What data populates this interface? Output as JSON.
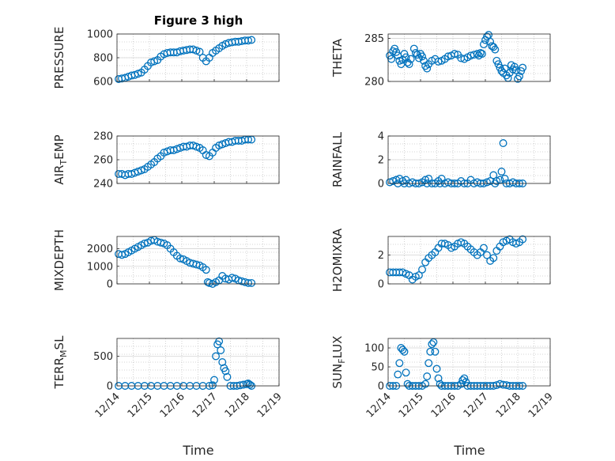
{
  "figure_title": "Figure 3 high",
  "colors": {
    "marker": "#0072BD",
    "axes": "#262626",
    "grid": "#c8c8c8"
  },
  "x_axis": {
    "label": "Time",
    "ticks": [
      "12/14",
      "12/15",
      "12/16",
      "12/17",
      "12/18",
      "12/19"
    ]
  },
  "chart_data": [
    {
      "type": "scatter",
      "title": "Figure 3 high",
      "ylabel": "PRESSURE",
      "ylim": [
        600,
        1000
      ],
      "yticks": [
        "600",
        "800",
        "1000"
      ],
      "ytick_values": [
        600,
        800,
        1000
      ],
      "xlim": [
        0,
        5
      ],
      "grid": "on",
      "x": [
        0.05,
        0.15,
        0.25,
        0.35,
        0.45,
        0.55,
        0.65,
        0.75,
        0.85,
        0.95,
        1.05,
        1.15,
        1.25,
        1.35,
        1.45,
        1.55,
        1.65,
        1.75,
        1.85,
        1.95,
        2.05,
        2.15,
        2.25,
        2.35,
        2.45,
        2.55,
        2.65,
        2.75,
        2.85,
        2.95,
        3.05,
        3.15,
        3.25,
        3.35,
        3.45,
        3.55,
        3.65,
        3.75,
        3.85,
        3.95,
        4.05,
        4.15
      ],
      "y": [
        620,
        625,
        630,
        640,
        650,
        655,
        665,
        675,
        700,
        730,
        760,
        770,
        780,
        810,
        830,
        840,
        845,
        845,
        845,
        855,
        860,
        865,
        870,
        870,
        860,
        850,
        800,
        770,
        800,
        840,
        860,
        880,
        900,
        915,
        925,
        930,
        935,
        935,
        940,
        945,
        945,
        950
      ]
    },
    {
      "type": "scatter",
      "ylabel": "THETA",
      "ylim": [
        280,
        285.5
      ],
      "yticks": [
        "280",
        "285"
      ],
      "ytick_values": [
        280,
        285
      ],
      "xlim": [
        0,
        5
      ],
      "grid": "on",
      "x": [
        0.05,
        0.1,
        0.15,
        0.2,
        0.25,
        0.3,
        0.35,
        0.4,
        0.45,
        0.5,
        0.55,
        0.6,
        0.65,
        0.7,
        0.8,
        0.85,
        0.9,
        0.95,
        1.0,
        1.05,
        1.1,
        1.15,
        1.2,
        1.25,
        1.35,
        1.45,
        1.55,
        1.65,
        1.75,
        1.85,
        1.95,
        2.05,
        2.15,
        2.25,
        2.35,
        2.45,
        2.55,
        2.65,
        2.75,
        2.8,
        2.85,
        2.9,
        2.95,
        3.0,
        3.05,
        3.1,
        3.15,
        3.2,
        3.25,
        3.3,
        3.35,
        3.4,
        3.45,
        3.5,
        3.55,
        3.6,
        3.65,
        3.7,
        3.75,
        3.8,
        3.85,
        3.9,
        3.95,
        4.0,
        4.05,
        4.1,
        4.15
      ],
      "y": [
        283.0,
        282.6,
        283.5,
        283.8,
        283.4,
        283.0,
        282.4,
        282.0,
        282.5,
        283.2,
        282.8,
        282.2,
        282.0,
        282.6,
        283.8,
        283.3,
        283.1,
        282.7,
        283.2,
        282.9,
        282.4,
        281.8,
        281.5,
        282.0,
        282.4,
        282.6,
        282.3,
        282.4,
        282.6,
        282.9,
        283.0,
        283.2,
        283.1,
        282.7,
        282.6,
        282.8,
        283.0,
        283.1,
        283.2,
        283.0,
        283.3,
        283.2,
        284.3,
        284.8,
        285.2,
        285.4,
        284.6,
        284.1,
        284.0,
        283.7,
        282.4,
        282.0,
        281.6,
        281.2,
        281.0,
        281.5,
        280.7,
        280.4,
        281.0,
        281.9,
        281.4,
        281.7,
        281.3,
        280.3,
        280.6,
        281.2,
        281.6
      ]
    },
    {
      "type": "scatter",
      "ylabel": "AIR_TEMP",
      "ylim": [
        240,
        280
      ],
      "yticks": [
        "240",
        "260",
        "280"
      ],
      "ytick_values": [
        240,
        260,
        280
      ],
      "xlim": [
        0,
        5
      ],
      "grid": "on",
      "x": [
        0.05,
        0.15,
        0.25,
        0.35,
        0.45,
        0.55,
        0.65,
        0.75,
        0.85,
        0.95,
        1.05,
        1.15,
        1.25,
        1.35,
        1.45,
        1.55,
        1.65,
        1.75,
        1.85,
        1.95,
        2.05,
        2.15,
        2.25,
        2.35,
        2.45,
        2.55,
        2.65,
        2.75,
        2.85,
        2.95,
        3.05,
        3.15,
        3.25,
        3.35,
        3.45,
        3.55,
        3.65,
        3.75,
        3.85,
        3.95,
        4.05,
        4.15
      ],
      "y": [
        248,
        248,
        247,
        248,
        248,
        249,
        250,
        251,
        252,
        254,
        256,
        258,
        261,
        263,
        266,
        267,
        268,
        268,
        269,
        270,
        271,
        271,
        272,
        272,
        271,
        270,
        268,
        264,
        263,
        266,
        270,
        272,
        273,
        274,
        275,
        275,
        276,
        276,
        276,
        277,
        277,
        277
      ]
    },
    {
      "type": "scatter",
      "ylabel": "RAINFALL",
      "ylim": [
        0,
        4
      ],
      "yticks": [
        "0",
        "2",
        "4"
      ],
      "ytick_values": [
        0,
        2,
        4
      ],
      "xlim": [
        0,
        5
      ],
      "grid": "on",
      "x": [
        0.05,
        0.15,
        0.25,
        0.3,
        0.35,
        0.45,
        0.5,
        0.55,
        0.65,
        0.75,
        0.85,
        0.95,
        1.05,
        1.15,
        1.2,
        1.25,
        1.35,
        1.45,
        1.55,
        1.6,
        1.65,
        1.75,
        1.85,
        1.95,
        2.05,
        2.15,
        2.25,
        2.35,
        2.45,
        2.55,
        2.65,
        2.75,
        2.85,
        2.95,
        3.05,
        3.15,
        3.25,
        3.3,
        3.35,
        3.45,
        3.5,
        3.55,
        3.6,
        3.65,
        3.75,
        3.85,
        3.95,
        4.05,
        4.15
      ],
      "y": [
        0.1,
        0.2,
        0.3,
        0.0,
        0.4,
        0.2,
        0.0,
        0.3,
        0.0,
        0.1,
        0.0,
        0.0,
        0.1,
        0.3,
        0.0,
        0.4,
        0.0,
        0.0,
        0.2,
        0.0,
        0.4,
        0.0,
        0.1,
        0.0,
        0.0,
        0.0,
        0.2,
        0.0,
        0.0,
        0.3,
        0.0,
        0.1,
        0.0,
        0.0,
        0.1,
        0.2,
        0.7,
        0.0,
        0.2,
        0.3,
        1.0,
        3.4,
        0.4,
        0.0,
        0.0,
        0.1,
        0.0,
        0.0,
        0.0
      ]
    },
    {
      "type": "scatter",
      "ylabel": "MIXDEPTH",
      "ylim": [
        0,
        2700
      ],
      "yticks": [
        "0",
        "1000",
        "2000"
      ],
      "ytick_values": [
        0,
        1000,
        2000
      ],
      "xlim": [
        0,
        5
      ],
      "grid": "on",
      "x": [
        0.05,
        0.15,
        0.25,
        0.35,
        0.45,
        0.55,
        0.65,
        0.75,
        0.85,
        0.95,
        1.05,
        1.15,
        1.25,
        1.35,
        1.45,
        1.55,
        1.65,
        1.75,
        1.85,
        1.95,
        2.05,
        2.15,
        2.25,
        2.35,
        2.45,
        2.55,
        2.65,
        2.75,
        2.8,
        2.85,
        2.95,
        3.05,
        3.15,
        3.25,
        3.35,
        3.45,
        3.55,
        3.65,
        3.75,
        3.85,
        3.95,
        4.05,
        4.15
      ],
      "y": [
        1700,
        1650,
        1700,
        1800,
        1900,
        2000,
        2100,
        2200,
        2300,
        2350,
        2450,
        2500,
        2400,
        2350,
        2300,
        2200,
        2000,
        1800,
        1600,
        1450,
        1400,
        1300,
        1200,
        1150,
        1100,
        1050,
        950,
        800,
        100,
        50,
        0,
        100,
        200,
        450,
        300,
        250,
        350,
        300,
        200,
        150,
        100,
        50,
        50
      ]
    },
    {
      "type": "scatter",
      "ylabel": "H2OMIXRA",
      "ylim": [
        0,
        3.3
      ],
      "yticks": [
        "0",
        "2"
      ],
      "ytick_values": [
        0,
        2
      ],
      "xlim": [
        0,
        5
      ],
      "grid": "on",
      "x": [
        0.05,
        0.15,
        0.25,
        0.35,
        0.45,
        0.55,
        0.65,
        0.75,
        0.85,
        0.95,
        1.05,
        1.15,
        1.25,
        1.35,
        1.45,
        1.55,
        1.65,
        1.75,
        1.85,
        1.95,
        2.05,
        2.15,
        2.25,
        2.35,
        2.45,
        2.55,
        2.65,
        2.75,
        2.85,
        2.95,
        3.05,
        3.15,
        3.25,
        3.35,
        3.45,
        3.55,
        3.65,
        3.75,
        3.85,
        3.95,
        4.05,
        4.15
      ],
      "y": [
        0.8,
        0.8,
        0.8,
        0.8,
        0.8,
        0.7,
        0.6,
        0.3,
        0.5,
        0.6,
        1.0,
        1.5,
        1.8,
        2.0,
        2.2,
        2.5,
        2.8,
        2.8,
        2.7,
        2.5,
        2.6,
        2.8,
        2.9,
        2.8,
        2.6,
        2.4,
        2.2,
        2.0,
        2.2,
        2.5,
        2.0,
        1.6,
        1.8,
        2.3,
        2.6,
        2.9,
        3.0,
        3.1,
        2.9,
        2.8,
        2.9,
        3.1
      ]
    },
    {
      "type": "scatter",
      "ylabel": "TERR_MSL",
      "ylim": [
        0,
        800
      ],
      "yticks": [
        "0",
        "500"
      ],
      "ytick_values": [
        0,
        500
      ],
      "xlim": [
        0,
        5
      ],
      "grid": "on",
      "x": [
        0.05,
        0.25,
        0.45,
        0.65,
        0.85,
        1.05,
        1.25,
        1.45,
        1.65,
        1.85,
        2.05,
        2.25,
        2.45,
        2.65,
        2.85,
        2.95,
        3.0,
        3.05,
        3.1,
        3.15,
        3.2,
        3.25,
        3.3,
        3.35,
        3.4,
        3.5,
        3.6,
        3.7,
        3.8,
        3.9,
        4.0,
        4.05,
        4.1,
        4.15
      ],
      "y": [
        0,
        0,
        0,
        0,
        0,
        0,
        0,
        0,
        0,
        0,
        0,
        0,
        0,
        0,
        0,
        10,
        100,
        500,
        700,
        750,
        600,
        400,
        300,
        250,
        150,
        0,
        0,
        0,
        10,
        20,
        30,
        40,
        20,
        0
      ]
    },
    {
      "type": "scatter",
      "ylabel": "SUN_FLUX",
      "ylim": [
        0,
        125
      ],
      "yticks": [
        "0",
        "50",
        "100"
      ],
      "ytick_values": [
        0,
        50,
        100
      ],
      "xlim": [
        0,
        5
      ],
      "grid": "on",
      "x": [
        0.05,
        0.15,
        0.25,
        0.3,
        0.35,
        0.4,
        0.45,
        0.5,
        0.55,
        0.6,
        0.65,
        0.75,
        0.85,
        0.95,
        1.05,
        1.15,
        1.2,
        1.25,
        1.3,
        1.35,
        1.4,
        1.45,
        1.5,
        1.55,
        1.6,
        1.65,
        1.75,
        1.85,
        1.95,
        2.05,
        2.15,
        2.25,
        2.3,
        2.35,
        2.4,
        2.45,
        2.55,
        2.65,
        2.75,
        2.85,
        2.95,
        3.05,
        3.15,
        3.25,
        3.35,
        3.45,
        3.55,
        3.65,
        3.75,
        3.85,
        3.95,
        4.05,
        4.15
      ],
      "y": [
        0,
        0,
        0,
        30,
        60,
        100,
        95,
        90,
        35,
        5,
        0,
        0,
        0,
        0,
        0,
        5,
        25,
        60,
        90,
        110,
        115,
        90,
        45,
        20,
        5,
        0,
        0,
        0,
        0,
        0,
        0,
        5,
        15,
        20,
        10,
        0,
        0,
        0,
        0,
        0,
        0,
        0,
        0,
        0,
        2,
        5,
        3,
        2,
        0,
        0,
        0,
        0,
        0
      ]
    }
  ]
}
